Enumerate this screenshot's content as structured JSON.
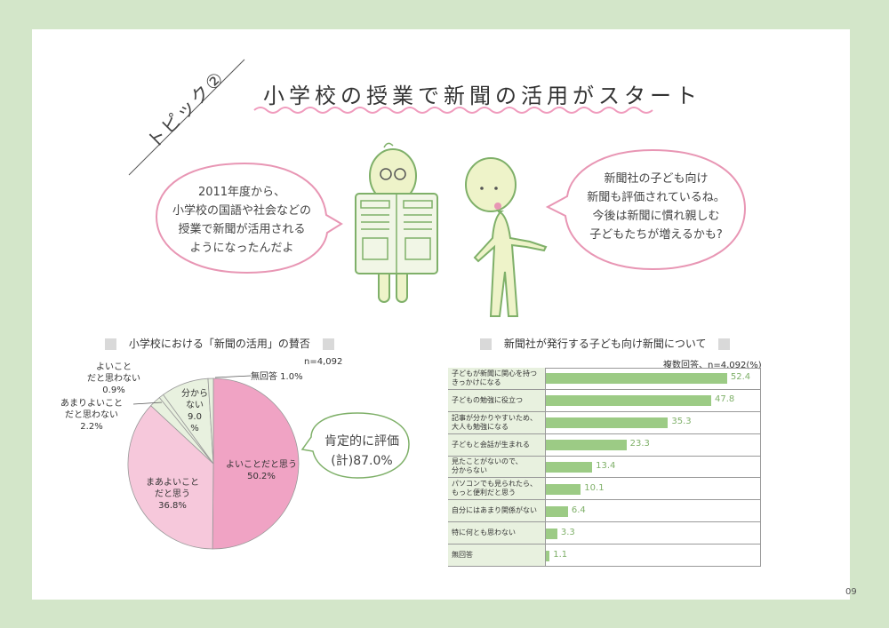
{
  "topic": "トピック②",
  "title": "小学校の授業で新聞の活用がスタート",
  "bubble_left": [
    "2011年度から、",
    "小学校の国語や社会などの",
    "授業で新聞が活用される",
    "ようになったんだよ"
  ],
  "bubble_right": [
    "新聞社の子ども向け",
    "新聞も評価されているね。",
    "今後は新聞に慣れ親しむ",
    "子どもたちが増えるかも?"
  ],
  "colors": {
    "pink_dark": "#f0a3c4",
    "pink_light": "#f6c8db",
    "green_light": "#e8f1df",
    "bar_green": "#9ccb85",
    "bubble_border": "#e896b4"
  },
  "page_number": "09",
  "chart_data": [
    {
      "type": "pie",
      "title": "小学校における「新聞の活用」の賛否",
      "note": "n=4,092",
      "slices": [
        {
          "label": "よいことだと思う",
          "value": 50.2
        },
        {
          "label": "まあよいことだと思う",
          "value": 36.8
        },
        {
          "label": "あまりよいことだと思わない",
          "value": 2.2
        },
        {
          "label": "よいことだと思わない",
          "value": 0.9
        },
        {
          "label": "分からない",
          "value": 9.0
        },
        {
          "label": "無回答",
          "value": 1.0
        }
      ],
      "annotation": [
        "肯定的に評価",
        "(計)87.0%"
      ]
    },
    {
      "type": "bar",
      "title": "新聞社が発行する子ども向け新聞について",
      "note": "複数回答、n=4,092(%)",
      "categories": [
        [
          "子どもが新聞に関心を持つ",
          "きっかけになる"
        ],
        [
          "子どもの勉強に役立つ"
        ],
        [
          "記事が分かりやすいため、",
          "大人も勉強になる"
        ],
        [
          "子どもと会話が生まれる"
        ],
        [
          "見たことがないので、",
          "分からない"
        ],
        [
          "パソコンでも見られたら、",
          "もっと便利だと思う"
        ],
        [
          "自分にはあまり関係がない"
        ],
        [
          "特に何とも思わない"
        ],
        [
          "無回答"
        ]
      ],
      "values": [
        52.4,
        47.8,
        35.3,
        23.3,
        13.4,
        10.1,
        6.4,
        3.3,
        1.1
      ],
      "value_labels": [
        "52.4",
        "47.8",
        "35.3",
        "23.3",
        "13.4",
        "10.1",
        "6.4",
        "3.3",
        "1.1"
      ]
    }
  ],
  "pie_labels": {
    "s0": [
      "よいことだと思う",
      "50.2%"
    ],
    "s1": [
      "まあよいこと",
      "だと思う",
      "36.8%"
    ],
    "s2": [
      "あまりよいこと",
      "だと思わない",
      "2.2%"
    ],
    "s3": [
      "よいこと",
      "だと思わない",
      "0.9%"
    ],
    "s4": [
      "分から",
      "ない",
      "9.0",
      "%"
    ],
    "s5": [
      "無回答 1.0%"
    ]
  }
}
